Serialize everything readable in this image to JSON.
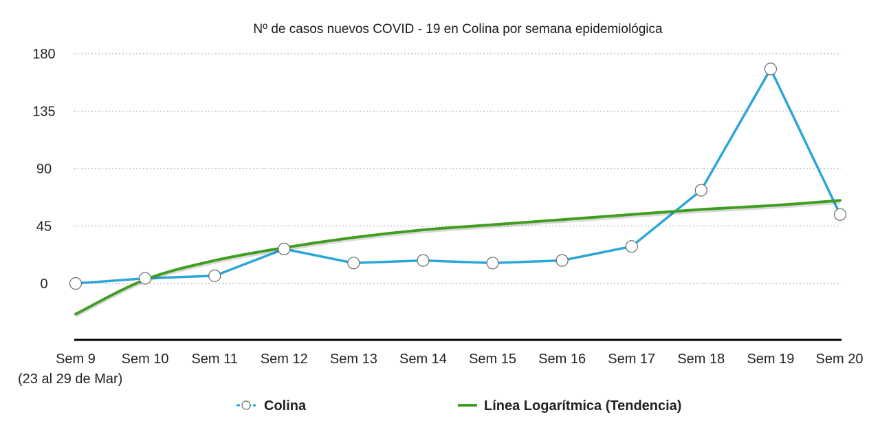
{
  "chart_data": {
    "type": "line",
    "title": "Nº de casos nuevos COVID - 19 en Colina por semana epidemiológica",
    "xlabel": "",
    "ylabel": "",
    "categories": [
      "Sem 9",
      "Sem 10",
      "Sem 11",
      "Sem 12",
      "Sem 13",
      "Sem 14",
      "Sem 15",
      "Sem 16",
      "Sem 17",
      "Sem 18",
      "Sem 19",
      "Sem 20"
    ],
    "first_category_note": "(23 al 29 de Mar)",
    "ylim": [
      -45,
      180
    ],
    "yticks": [
      0,
      45,
      90,
      135,
      180
    ],
    "grid": true,
    "legend_position": "bottom",
    "series": [
      {
        "name": "Colina",
        "color": "#2aa6d8",
        "marker": "circle-open",
        "values": [
          0,
          4,
          6,
          27,
          16,
          18,
          16,
          18,
          29,
          73,
          168,
          54
        ]
      },
      {
        "name": "Línea Logarítmica (Tendencia)",
        "color": "#3f9e1f",
        "kind": "trendline-logarithmic",
        "values": [
          -24,
          3,
          18,
          28,
          36,
          42,
          46,
          50,
          54,
          58,
          61,
          65
        ]
      }
    ]
  }
}
